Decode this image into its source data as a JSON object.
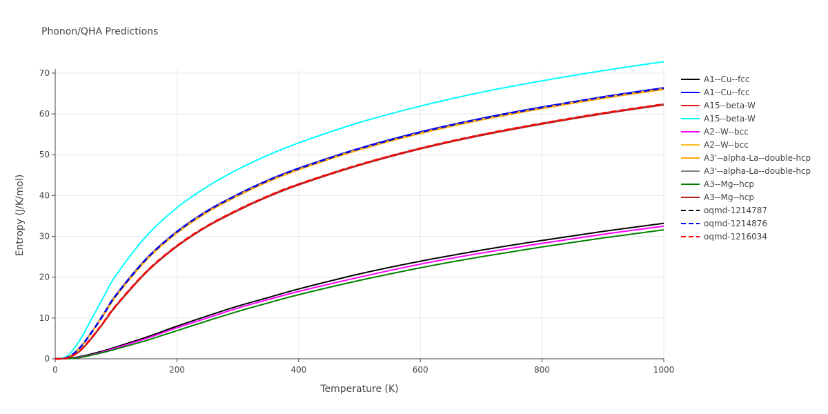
{
  "chart_data": {
    "type": "line",
    "title": "Phonon/QHA Predictions",
    "xlabel": "Temperature (K)",
    "ylabel": "Entropy (J/K/mol)",
    "xlim": [
      0,
      1000
    ],
    "ylim": [
      0,
      71
    ],
    "xticks": [
      0,
      200,
      400,
      600,
      800,
      1000
    ],
    "yticks": [
      0,
      10,
      20,
      30,
      40,
      50,
      60,
      70
    ],
    "grid": true,
    "legend_position": "right",
    "x": [
      0,
      20,
      40,
      60,
      80,
      100,
      150,
      200,
      250,
      300,
      350,
      400,
      500,
      600,
      700,
      800,
      900,
      1000
    ],
    "series": [
      {
        "name": "A1--Cu--fcc",
        "color": "#000000",
        "dash": "solid",
        "values": [
          0,
          0.1,
          0.5,
          1.2,
          2.0,
          2.9,
          5.3,
          8.0,
          10.5,
          12.9,
          15.0,
          17.1,
          20.8,
          23.9,
          26.6,
          29.0,
          31.2,
          33.2
        ]
      },
      {
        "name": "A1--Cu--fcc",
        "color": "#0000ff",
        "dash": "solid",
        "values": [
          0,
          0.3,
          2.7,
          6.6,
          11.1,
          15.7,
          24.6,
          31.2,
          36.3,
          40.3,
          43.8,
          46.7,
          51.6,
          55.6,
          58.9,
          61.7,
          64.2,
          66.4
        ]
      },
      {
        "name": "A15--beta-W",
        "color": "#e41a1c",
        "dash": "solid",
        "values": [
          0,
          0.2,
          1.9,
          5.2,
          9.1,
          13.1,
          21.4,
          27.7,
          32.6,
          36.5,
          39.9,
          42.8,
          47.6,
          51.6,
          54.9,
          57.7,
          60.2,
          62.4
        ]
      },
      {
        "name": "A15--beta-W",
        "color": "#00ffff",
        "dash": "solid",
        "values": [
          0,
          0.7,
          4.5,
          9.8,
          15.3,
          20.5,
          30.1,
          37.0,
          42.2,
          46.4,
          49.9,
          52.9,
          57.9,
          61.9,
          65.3,
          68.1,
          70.6,
          72.8
        ]
      },
      {
        "name": "A2--W--bcc",
        "color": "#ff00ff",
        "dash": "solid",
        "values": [
          0,
          0.05,
          0.4,
          1.0,
          1.8,
          2.7,
          5.0,
          7.6,
          10.0,
          12.4,
          14.5,
          16.5,
          20.0,
          23.2,
          25.9,
          28.3,
          30.5,
          32.5
        ]
      },
      {
        "name": "A2--W--bcc",
        "color": "#f7bd1e",
        "dash": "solid",
        "values": [
          0,
          0.3,
          2.6,
          6.5,
          11.0,
          15.5,
          24.4,
          31.0,
          36.1,
          40.1,
          43.6,
          46.5,
          51.4,
          55.4,
          58.7,
          61.5,
          64.0,
          66.2
        ]
      },
      {
        "name": "A3'--alpha-La--double-hcp",
        "color": "#ffa500",
        "dash": "solid",
        "values": [
          0,
          0.3,
          2.5,
          6.4,
          10.8,
          15.3,
          24.2,
          30.8,
          35.9,
          39.9,
          43.4,
          46.3,
          51.2,
          55.2,
          58.5,
          61.3,
          63.8,
          66.0
        ]
      },
      {
        "name": "A3'--alpha-La--double-hcp",
        "color": "#808080",
        "dash": "solid",
        "values": [
          0,
          0.2,
          1.9,
          5.1,
          9.0,
          13.0,
          21.3,
          27.6,
          32.5,
          36.4,
          39.8,
          42.7,
          47.5,
          51.5,
          54.8,
          57.6,
          60.1,
          62.3
        ]
      },
      {
        "name": "A3--Mg--hcp",
        "color": "#008000",
        "dash": "solid",
        "values": [
          0,
          0.05,
          0.3,
          0.9,
          1.6,
          2.4,
          4.5,
          6.9,
          9.3,
          11.6,
          13.7,
          15.7,
          19.2,
          22.3,
          25.0,
          27.4,
          29.6,
          31.6
        ]
      },
      {
        "name": "A3--Mg--hcp",
        "color": "#b22222",
        "dash": "solid",
        "values": [
          0,
          0.2,
          1.8,
          5.0,
          8.9,
          12.9,
          21.2,
          27.5,
          32.4,
          36.3,
          39.7,
          42.6,
          47.4,
          51.4,
          54.7,
          57.5,
          60.0,
          62.2
        ]
      },
      {
        "name": "oqmd-1214787",
        "color": "#000000",
        "dash": "dash",
        "values": [
          0,
          0.3,
          2.6,
          6.5,
          11.0,
          15.6,
          24.5,
          31.1,
          36.2,
          40.2,
          43.7,
          46.6,
          51.5,
          55.5,
          58.8,
          61.6,
          64.1,
          66.3
        ]
      },
      {
        "name": "oqmd-1214876",
        "color": "#0000ff",
        "dash": "dash",
        "values": [
          0,
          0.3,
          2.6,
          6.5,
          11.0,
          15.6,
          24.5,
          31.1,
          36.2,
          40.2,
          43.7,
          46.6,
          51.5,
          55.5,
          58.8,
          61.6,
          64.1,
          66.3
        ]
      },
      {
        "name": "oqmd-1216034",
        "color": "#ff0000",
        "dash": "dash",
        "values": [
          0,
          0.2,
          1.9,
          5.2,
          9.1,
          13.1,
          21.4,
          27.7,
          32.6,
          36.5,
          39.9,
          42.8,
          47.6,
          51.6,
          54.9,
          57.7,
          60.2,
          62.4
        ]
      }
    ]
  }
}
